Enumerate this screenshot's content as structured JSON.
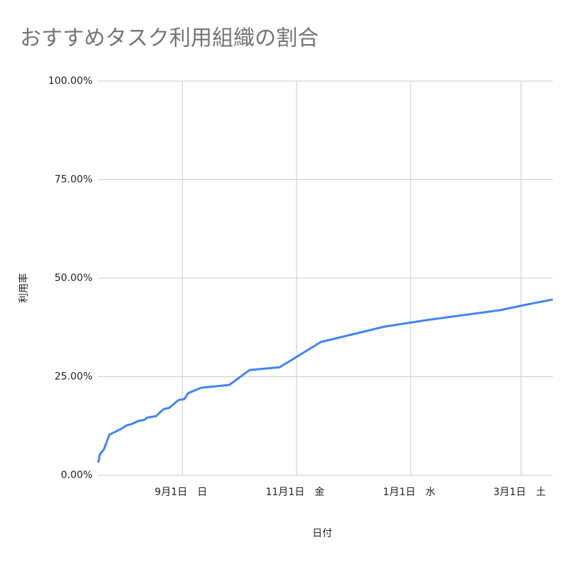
{
  "chart_data": {
    "type": "line",
    "title": "おすすめタスク利用組織の割合",
    "x_label": "日付",
    "y_label": "利用率",
    "x": [
      0,
      1,
      3,
      6,
      12,
      15,
      18,
      21,
      25,
      26,
      31,
      32,
      35,
      38,
      43,
      46,
      48,
      55,
      70,
      81,
      97,
      119,
      153,
      176,
      215,
      229,
      243
    ],
    "series": [
      {
        "name": "利用率",
        "color": "#4285f4",
        "values": [
          3.2,
          5.4,
          6.5,
          10.3,
          11.7,
          12.6,
          13.0,
          13.7,
          14.1,
          14.6,
          15.0,
          15.5,
          16.8,
          17.1,
          19.1,
          19.3,
          20.8,
          22.2,
          22.9,
          26.7,
          27.4,
          33.8,
          37.7,
          39.4,
          41.9,
          43.3,
          44.6
        ]
      }
    ],
    "xlim": [
      0,
      243
    ],
    "xticks": [
      {
        "value": 45,
        "label": "9月1日　日"
      },
      {
        "value": 106,
        "label": "11月1日　金"
      },
      {
        "value": 167,
        "label": "1月1日　水"
      },
      {
        "value": 226,
        "label": "3月1日　土"
      }
    ],
    "ylim": [
      0,
      100
    ],
    "yticks": [
      {
        "value": 0,
        "label": "0.00%"
      },
      {
        "value": 25,
        "label": "25.00%"
      },
      {
        "value": 50,
        "label": "50.00%"
      },
      {
        "value": 75,
        "label": "75.00%"
      },
      {
        "value": 100,
        "label": "100.00%"
      }
    ],
    "grid": true
  }
}
